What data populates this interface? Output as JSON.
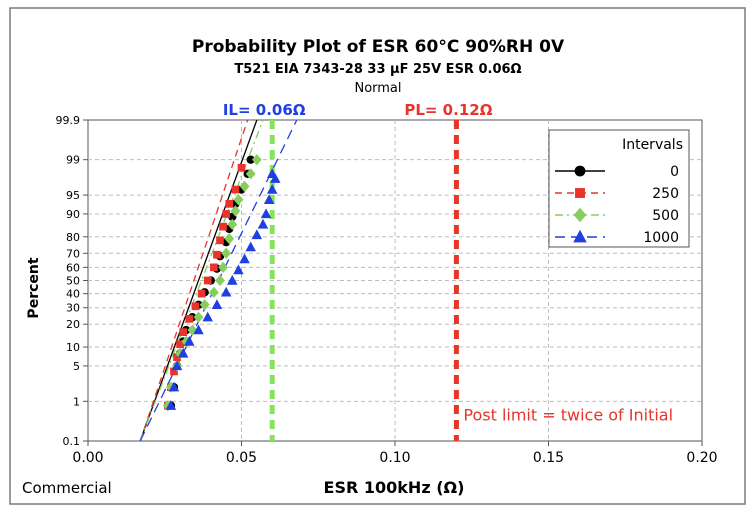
{
  "chart_data": {
    "type": "scatter",
    "title": "Probability Plot of ESR  60°C 90%RH 0V",
    "subtitle": "T521 EIA 7343-28 33 µF 25V ESR 0.06Ω",
    "distribution": "Normal",
    "xlabel": "ESR 100kHz (Ω)",
    "ylabel": "Percent",
    "footer": "Commercial",
    "xlim": [
      0,
      0.2
    ],
    "x_ticks": [
      "0.00",
      "0.05",
      "0.10",
      "0.15",
      "0.20"
    ],
    "y_scale": "normal-probability",
    "y_ticks": [
      "0.1",
      "1",
      "5",
      "10",
      "20",
      "30",
      "40",
      "50",
      "60",
      "70",
      "80",
      "90",
      "95",
      "99",
      "99.9"
    ],
    "grid": true,
    "legend": {
      "title": "Intervals",
      "placement": "top-right"
    },
    "limits": [
      {
        "label": "IL= 0.06Ω",
        "x": 0.06,
        "color": "#86e35a"
      },
      {
        "label": "PL= 0.12Ω",
        "x": 0.12,
        "color": "#e8342a"
      }
    ],
    "annotation": "Post limit = twice of Initial",
    "series": [
      {
        "name": "0",
        "color": "#000000",
        "marker": "circle",
        "line": "solid",
        "points": [
          [
            0.027,
            0.8
          ],
          [
            0.028,
            2
          ],
          [
            0.029,
            5
          ],
          [
            0.03,
            8
          ],
          [
            0.031,
            12
          ],
          [
            0.032,
            17
          ],
          [
            0.034,
            24
          ],
          [
            0.036,
            32
          ],
          [
            0.038,
            41
          ],
          [
            0.04,
            50
          ],
          [
            0.042,
            59
          ],
          [
            0.043,
            68
          ],
          [
            0.045,
            77
          ],
          [
            0.046,
            84
          ],
          [
            0.047,
            89
          ],
          [
            0.048,
            93
          ],
          [
            0.05,
            96
          ],
          [
            0.052,
            98
          ],
          [
            0.053,
            99
          ]
        ],
        "fit": [
          [
            0.017,
            0.1
          ],
          [
            0.055,
            99.9
          ]
        ]
      },
      {
        "name": "250",
        "color": "#e8342a",
        "marker": "square",
        "line": "dashed",
        "points": [
          [
            0.026,
            0.8
          ],
          [
            0.027,
            2
          ],
          [
            0.028,
            4
          ],
          [
            0.029,
            7
          ],
          [
            0.03,
            11
          ],
          [
            0.031,
            16
          ],
          [
            0.033,
            23
          ],
          [
            0.035,
            31
          ],
          [
            0.037,
            40
          ],
          [
            0.039,
            50
          ],
          [
            0.041,
            60
          ],
          [
            0.042,
            69
          ],
          [
            0.043,
            78
          ],
          [
            0.044,
            85
          ],
          [
            0.045,
            90
          ],
          [
            0.046,
            93
          ],
          [
            0.048,
            96
          ],
          [
            0.05,
            98.5
          ]
        ],
        "fit": [
          [
            0.017,
            0.1
          ],
          [
            0.052,
            99.9
          ]
        ]
      },
      {
        "name": "500",
        "color": "#86cf5e",
        "marker": "diamond",
        "line": "dashdot",
        "points": [
          [
            0.026,
            0.8
          ],
          [
            0.027,
            2
          ],
          [
            0.029,
            5
          ],
          [
            0.03,
            8
          ],
          [
            0.032,
            12
          ],
          [
            0.034,
            17
          ],
          [
            0.036,
            24
          ],
          [
            0.038,
            32
          ],
          [
            0.041,
            41
          ],
          [
            0.043,
            50
          ],
          [
            0.044,
            60
          ],
          [
            0.045,
            70
          ],
          [
            0.046,
            79
          ],
          [
            0.047,
            86
          ],
          [
            0.048,
            91
          ],
          [
            0.049,
            94
          ],
          [
            0.051,
            96.5
          ],
          [
            0.053,
            98
          ],
          [
            0.055,
            99
          ]
        ],
        "fit": [
          [
            0.017,
            0.1
          ],
          [
            0.057,
            99.9
          ]
        ]
      },
      {
        "name": "1000",
        "color": "#1f3fe0",
        "marker": "triangle",
        "line": "longdash",
        "points": [
          [
            0.027,
            0.8
          ],
          [
            0.028,
            2
          ],
          [
            0.029,
            5
          ],
          [
            0.031,
            8
          ],
          [
            0.033,
            12
          ],
          [
            0.036,
            17
          ],
          [
            0.039,
            24
          ],
          [
            0.042,
            32
          ],
          [
            0.045,
            41
          ],
          [
            0.047,
            50
          ],
          [
            0.049,
            58
          ],
          [
            0.051,
            66
          ],
          [
            0.053,
            74
          ],
          [
            0.055,
            81
          ],
          [
            0.057,
            86
          ],
          [
            0.058,
            90
          ],
          [
            0.059,
            94
          ],
          [
            0.06,
            96
          ],
          [
            0.061,
            97.5
          ],
          [
            0.06,
            98
          ]
        ],
        "fit": [
          [
            0.017,
            0.1
          ],
          [
            0.068,
            99.9
          ]
        ]
      }
    ]
  }
}
